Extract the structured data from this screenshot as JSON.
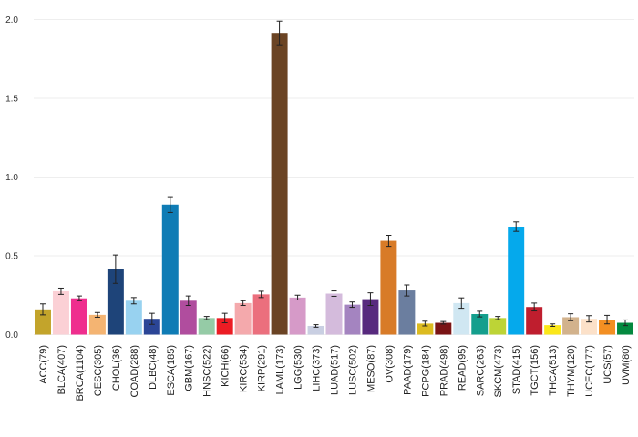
{
  "chart_data": {
    "type": "bar",
    "title": "",
    "xlabel": "",
    "ylabel": "",
    "ylim": [
      0,
      2.05
    ],
    "yticks": [
      0.0,
      0.5,
      1.0,
      1.5,
      2.0
    ],
    "ytick_labels": [
      "0.0",
      "0.5",
      "1.0",
      "1.5",
      "2.0"
    ],
    "grid": true,
    "legend": "none",
    "categories": [
      "ACC(79)",
      "BLCA(407)",
      "BRCA(1104)",
      "CESC(305)",
      "CHOL(36)",
      "COAD(288)",
      "DLBC(48)",
      "ESCA(185)",
      "GBM(167)",
      "HNSC(522)",
      "KICH(66)",
      "KIRC(534)",
      "KIRP(291)",
      "LAML(173)",
      "LGG(530)",
      "LIHC(373)",
      "LUAD(517)",
      "LUSC(502)",
      "MESO(87)",
      "OV(308)",
      "PAAD(179)",
      "PCPG(184)",
      "PRAD(498)",
      "READ(95)",
      "SARC(263)",
      "SKCM(473)",
      "STAD(415)",
      "TGCT(156)",
      "THCA(513)",
      "THYM(120)",
      "UCEC(177)",
      "UCS(57)",
      "UVM(80)"
    ],
    "values": [
      0.16,
      0.275,
      0.23,
      0.125,
      0.415,
      0.215,
      0.1,
      0.825,
      0.215,
      0.105,
      0.105,
      0.2,
      0.255,
      1.915,
      0.235,
      0.055,
      0.26,
      0.19,
      0.225,
      0.595,
      0.28,
      0.07,
      0.075,
      0.2,
      0.13,
      0.105,
      0.685,
      0.175,
      0.06,
      0.11,
      0.1,
      0.095,
      0.075
    ],
    "errors": [
      0.035,
      0.02,
      0.015,
      0.015,
      0.09,
      0.02,
      0.035,
      0.05,
      0.03,
      0.01,
      0.03,
      0.015,
      0.02,
      0.075,
      0.015,
      0.008,
      0.017,
      0.017,
      0.04,
      0.035,
      0.035,
      0.015,
      0.008,
      0.033,
      0.018,
      0.01,
      0.03,
      0.025,
      0.008,
      0.022,
      0.02,
      0.027,
      0.018
    ],
    "colors": [
      "#c3a42b",
      "#fbd0d5",
      "#ef2e8e",
      "#f4b472",
      "#1e4479",
      "#98d2f0",
      "#2b4596",
      "#0f7cb5",
      "#b04d9e",
      "#95cba6",
      "#ec1c24",
      "#f4a9ac",
      "#eb6f7d",
      "#6b4424",
      "#d69ac8",
      "#c9cfe2",
      "#d4bbdc",
      "#a484c0",
      "#57297e",
      "#d87b28",
      "#6b7e9f",
      "#dcbb20",
      "#7a1415",
      "#d0e7f2",
      "#149f8d",
      "#bdd436",
      "#05a9ec",
      "#bf1e2e",
      "#fbe71a",
      "#d2b28c",
      "#fce1c9",
      "#f38f22",
      "#04893f"
    ]
  }
}
